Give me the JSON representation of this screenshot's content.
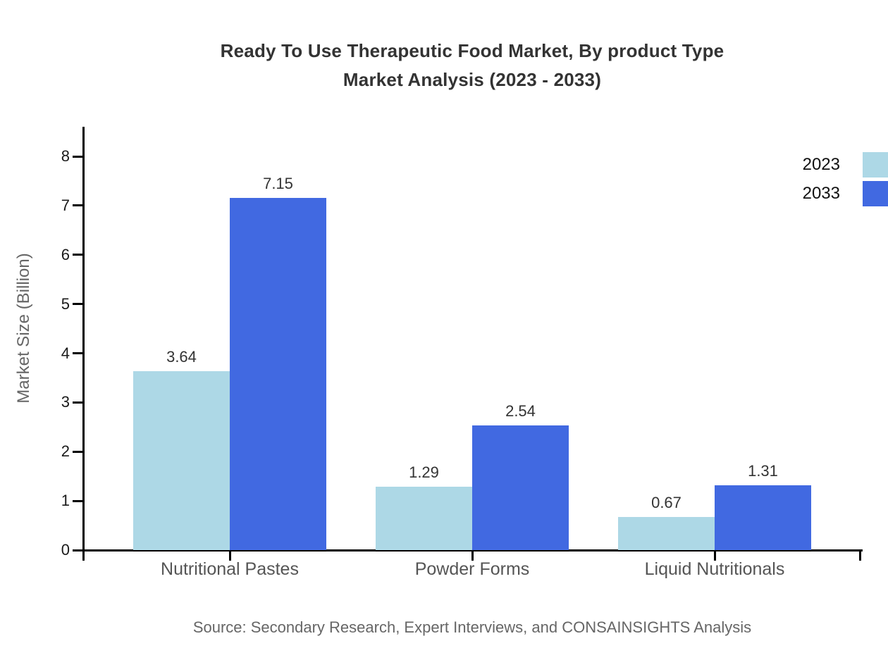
{
  "title": {
    "line1": "Ready To Use Therapeutic Food Market, By product Type",
    "line2": "Market Analysis (2023 - 2033)"
  },
  "source": "Source: Secondary Research, Expert Interviews, and CONSAINSIGHTS Analysis",
  "chart_data": {
    "type": "bar",
    "title": "Ready To Use Therapeutic Food Market, By product Type Market Analysis (2023 - 2033)",
    "categories": [
      "Nutritional Pastes",
      "Powder Forms",
      "Liquid Nutritionals"
    ],
    "series": [
      {
        "name": "2023",
        "color": "#ADD8E6",
        "values": [
          3.64,
          1.29,
          0.67
        ]
      },
      {
        "name": "2033",
        "color": "#4169E1",
        "values": [
          7.15,
          2.54,
          1.31
        ]
      }
    ],
    "xlabel": "",
    "ylabel": "Market Size (Billion)",
    "ylim": [
      0,
      8
    ],
    "yticks": [
      0,
      1,
      2,
      3,
      4,
      5,
      6,
      7,
      8
    ],
    "grid": false,
    "legend_position": "top-right",
    "value_labels": true
  },
  "colors": {
    "series_2023": "#ADD8E6",
    "series_2033": "#4169E1",
    "axis": "#000000",
    "title_text": "#333333",
    "tick_text": "#1a1a1a",
    "category_text": "#555555",
    "muted_text": "#666666"
  }
}
